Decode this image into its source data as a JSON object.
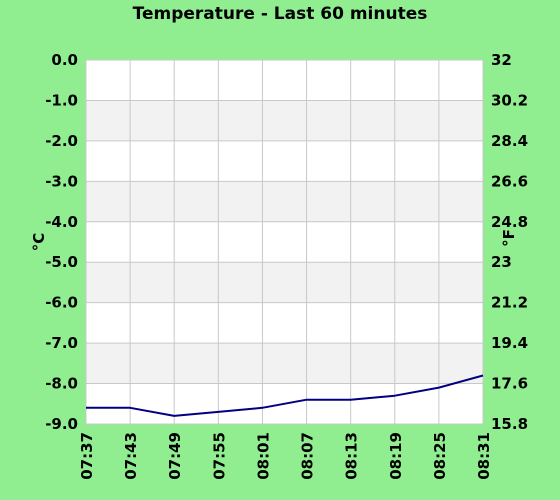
{
  "chart_data": {
    "type": "line",
    "title": "Temperature - Last 60 minutes",
    "ylabel": "°C",
    "y2label": "°F",
    "ylim": [
      -9.0,
      0.0
    ],
    "y2lim": [
      15.8,
      32
    ],
    "yticks": [
      "0.0",
      "-1.0",
      "-2.0",
      "-3.0",
      "-4.0",
      "-5.0",
      "-6.0",
      "-7.0",
      "-8.0",
      "-9.0"
    ],
    "y2ticks": [
      "32",
      "30.2",
      "28.4",
      "26.6",
      "24.8",
      "23",
      "21.2",
      "19.4",
      "17.6",
      "15.8"
    ],
    "xticks": [
      "07:37",
      "07:43",
      "07:49",
      "07:55",
      "08:01",
      "08:07",
      "08:13",
      "08:19",
      "08:25",
      "08:31"
    ],
    "x_minutes": [
      0,
      6,
      12,
      18,
      24,
      30,
      36,
      42,
      48,
      54
    ],
    "series": [
      {
        "color": "#000080",
        "x": [
          0,
          6,
          12,
          18,
          24,
          30,
          36,
          42,
          48,
          54
        ],
        "values": [
          -8.6,
          -8.6,
          -8.8,
          -8.7,
          -8.6,
          -8.4,
          -8.4,
          -8.3,
          -8.1,
          -7.8
        ]
      }
    ],
    "grid": true,
    "band_color": "#f2f2f2",
    "plot_bg": "#ffffff",
    "grid_color": "#c8c8c8"
  }
}
